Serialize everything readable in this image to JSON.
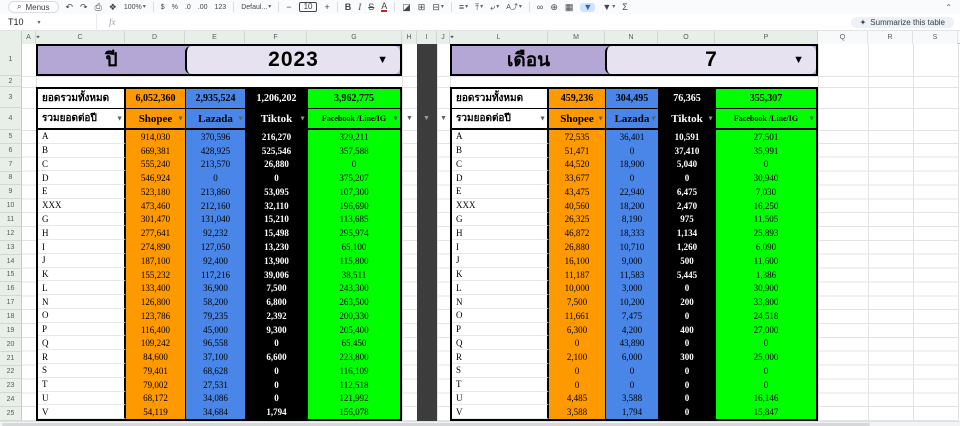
{
  "toolbar": {
    "menus_label": "Menus",
    "search_icon": "search-icon",
    "items": [
      {
        "n": "undo-icon",
        "g": "↶"
      },
      {
        "n": "redo-icon",
        "g": "↷"
      },
      {
        "n": "print-icon",
        "g": "⎙"
      },
      {
        "n": "paint-format-icon",
        "g": "❖"
      },
      {
        "n": "zoom-select",
        "g": "100%",
        "d": 1,
        "cls": "small"
      },
      {
        "n": "divider"
      },
      {
        "n": "format-currency-icon",
        "g": "$",
        "cls": "small"
      },
      {
        "n": "format-percent-icon",
        "g": "%",
        "cls": "small"
      },
      {
        "n": "decrease-decimal-icon",
        "g": ".0",
        "cls": "small"
      },
      {
        "n": "increase-decimal-icon",
        "g": ".00",
        "cls": "small"
      },
      {
        "n": "number-format-icon",
        "g": "123",
        "cls": "small"
      },
      {
        "n": "divider"
      },
      {
        "n": "font-select",
        "g": "Defaul...",
        "d": 1,
        "cls": "small"
      },
      {
        "n": "divider"
      },
      {
        "n": "decrease-font-size-icon",
        "g": "−"
      },
      {
        "n": "font-size-input",
        "g": "10",
        "cls": "box"
      },
      {
        "n": "increase-font-size-icon",
        "g": "+"
      },
      {
        "n": "divider"
      },
      {
        "n": "bold-icon",
        "g": "B",
        "cls": "bold"
      },
      {
        "n": "italic-icon",
        "g": "I",
        "cls": "ital"
      },
      {
        "n": "strikethrough-icon",
        "g": "S",
        "cls": "strike"
      },
      {
        "n": "text-color-icon",
        "g": "A",
        "cls": "redline"
      },
      {
        "n": "divider"
      },
      {
        "n": "fill-color-icon",
        "g": "◪"
      },
      {
        "n": "borders-icon",
        "g": "⊞"
      },
      {
        "n": "merge-cells-icon",
        "g": "⊟",
        "d": 1
      },
      {
        "n": "divider"
      },
      {
        "n": "horizontal-align-icon",
        "g": "≡",
        "d": 1
      },
      {
        "n": "vertical-align-icon",
        "g": "⤒",
        "d": 1
      },
      {
        "n": "text-wrap-icon",
        "g": "⤶",
        "d": 1
      },
      {
        "n": "text-rotation-icon",
        "g": "A⤴",
        "d": 1,
        "cls": "small"
      },
      {
        "n": "divider"
      },
      {
        "n": "insert-link-icon",
        "g": "∞"
      },
      {
        "n": "insert-comment-icon",
        "g": "⊕"
      },
      {
        "n": "insert-chart-icon",
        "g": "▦"
      },
      {
        "n": "create-filter-icon",
        "g": "▼",
        "active": 1
      },
      {
        "n": "filter-views-icon",
        "g": "▼",
        "d": 1
      },
      {
        "n": "functions-icon",
        "g": "Σ"
      }
    ],
    "collapse_icon_glyph": "⌃"
  },
  "formula_bar": {
    "cell_reference": "T10",
    "fx_label": "fx",
    "summarize_label": "Summarize this table",
    "summarize_icon_glyph": "✦"
  },
  "sheet": {
    "columns": [
      {
        "letter": "A",
        "hidden_after": true
      },
      {
        "letter": "C"
      },
      {
        "letter": "D"
      },
      {
        "letter": "E"
      },
      {
        "letter": "F"
      },
      {
        "letter": "G"
      },
      {
        "letter": "H"
      },
      {
        "letter": "I"
      },
      {
        "letter": "J",
        "hidden_after": true
      },
      {
        "letter": "L"
      },
      {
        "letter": "M"
      },
      {
        "letter": "N"
      },
      {
        "letter": "O"
      },
      {
        "letter": "P"
      },
      {
        "letter": "Q",
        "plain": true
      },
      {
        "letter": "R",
        "plain": true
      },
      {
        "letter": "S",
        "plain": true
      }
    ],
    "row_numbers": [
      1,
      2,
      3,
      4,
      5,
      6,
      7,
      8,
      9,
      10,
      11,
      12,
      13,
      14,
      15,
      16,
      17,
      18,
      19,
      20,
      21,
      22,
      23,
      24,
      25
    ]
  },
  "colors": {
    "shopee": "#ff9900",
    "lazada": "#4a86e8",
    "tiktok": "#000000",
    "facebook_line_ig": "#00ff00",
    "banner_purple": "#b4a7d6",
    "banner_chip": "#e6e2f0",
    "separator_dark": "#3c3c3c",
    "filter_active_blue": "#1967d2"
  },
  "tables": [
    {
      "banner_label": "ปี",
      "banner_value": "2023",
      "total_row_label": "ยอดรวมทั้งหมด",
      "filter_row_label": "รวมยอดต่อปี",
      "totals": [
        "6,052,360",
        "2,935,524",
        "1,206,202",
        "3,962,775"
      ],
      "channels": [
        "Shopee",
        "Lazada",
        "Tiktok",
        "Facebook /Line/IG"
      ],
      "rows": [
        {
          "label": "A",
          "values": [
            "914,030",
            "370,596",
            "216,270",
            "329,211"
          ]
        },
        {
          "label": "B",
          "values": [
            "669,381",
            "428,925",
            "525,546",
            "357,588"
          ]
        },
        {
          "label": "C",
          "values": [
            "555,240",
            "213,570",
            "26,880",
            "0"
          ]
        },
        {
          "label": "D",
          "values": [
            "546,924",
            "0",
            "0",
            "375,207"
          ]
        },
        {
          "label": "E",
          "values": [
            "523,180",
            "213,860",
            "53,095",
            "107,300"
          ]
        },
        {
          "label": "XXX",
          "values": [
            "473,460",
            "212,160",
            "32,110",
            "196,690"
          ]
        },
        {
          "label": "G",
          "values": [
            "301,470",
            "131,040",
            "15,210",
            "113,685"
          ]
        },
        {
          "label": "H",
          "values": [
            "277,641",
            "92,232",
            "15,498",
            "295,974"
          ]
        },
        {
          "label": "I",
          "values": [
            "274,890",
            "127,050",
            "13,230",
            "65,100"
          ]
        },
        {
          "label": "J",
          "values": [
            "187,100",
            "92,400",
            "13,900",
            "115,800"
          ]
        },
        {
          "label": "K",
          "values": [
            "155,232",
            "117,216",
            "39,006",
            "38,511"
          ]
        },
        {
          "label": "L",
          "values": [
            "133,400",
            "36,900",
            "7,500",
            "243,300"
          ]
        },
        {
          "label": "N",
          "values": [
            "126,800",
            "58,200",
            "6,800",
            "263,500"
          ]
        },
        {
          "label": "O",
          "values": [
            "123,786",
            "79,235",
            "2,392",
            "200,330"
          ]
        },
        {
          "label": "P",
          "values": [
            "116,400",
            "45,000",
            "9,300",
            "205,400"
          ]
        },
        {
          "label": "Q",
          "values": [
            "109,242",
            "96,558",
            "0",
            "65,450"
          ]
        },
        {
          "label": "R",
          "values": [
            "84,600",
            "37,100",
            "6,600",
            "223,800"
          ]
        },
        {
          "label": "S",
          "values": [
            "79,401",
            "68,628",
            "0",
            "116,109"
          ]
        },
        {
          "label": "T",
          "values": [
            "79,002",
            "27,531",
            "0",
            "112,518"
          ]
        },
        {
          "label": "U",
          "values": [
            "68,172",
            "34,086",
            "0",
            "121,992"
          ]
        },
        {
          "label": "V",
          "values": [
            "54,119",
            "34,684",
            "1,794",
            "156,078"
          ]
        }
      ]
    },
    {
      "banner_label": "เดือน",
      "banner_value": "7",
      "total_row_label": "ยอดรวมทั้งหมด",
      "filter_row_label": "รวมยอดต่อปี",
      "totals": [
        "459,236",
        "304,495",
        "76,365",
        "355,307"
      ],
      "channels": [
        "Shopee",
        "Lazada",
        "Tiktok",
        "Facebook /Line/IG"
      ],
      "rows": [
        {
          "label": "A",
          "values": [
            "72,535",
            "36,401",
            "10,591",
            "27,501"
          ]
        },
        {
          "label": "B",
          "values": [
            "51,471",
            "0",
            "37,410",
            "35,991"
          ]
        },
        {
          "label": "C",
          "values": [
            "44,520",
            "18,900",
            "5,040",
            "0"
          ]
        },
        {
          "label": "D",
          "values": [
            "33,677",
            "0",
            "0",
            "30,940"
          ]
        },
        {
          "label": "E",
          "values": [
            "43,475",
            "22,940",
            "6,475",
            "7,030"
          ]
        },
        {
          "label": "XXX",
          "values": [
            "40,560",
            "18,200",
            "2,470",
            "16,250"
          ]
        },
        {
          "label": "G",
          "values": [
            "26,325",
            "8,190",
            "975",
            "11,505"
          ]
        },
        {
          "label": "H",
          "values": [
            "46,872",
            "18,333",
            "1,134",
            "25,893"
          ]
        },
        {
          "label": "I",
          "values": [
            "26,880",
            "10,710",
            "1,260",
            "6,090"
          ]
        },
        {
          "label": "J",
          "values": [
            "16,100",
            "9,000",
            "500",
            "11,600"
          ]
        },
        {
          "label": "K",
          "values": [
            "11,187",
            "11,583",
            "5,445",
            "1,386"
          ]
        },
        {
          "label": "L",
          "values": [
            "10,000",
            "3,000",
            "0",
            "30,900"
          ]
        },
        {
          "label": "N",
          "values": [
            "7,500",
            "10,200",
            "200",
            "33,800"
          ]
        },
        {
          "label": "O",
          "values": [
            "11,661",
            "7,475",
            "0",
            "24,518"
          ]
        },
        {
          "label": "P",
          "values": [
            "6,300",
            "4,200",
            "400",
            "27,000"
          ]
        },
        {
          "label": "Q",
          "values": [
            "0",
            "43,890",
            "0",
            "0"
          ]
        },
        {
          "label": "R",
          "values": [
            "2,100",
            "6,000",
            "300",
            "25,000"
          ]
        },
        {
          "label": "S",
          "values": [
            "0",
            "0",
            "0",
            "0"
          ]
        },
        {
          "label": "T",
          "values": [
            "0",
            "0",
            "0",
            "0"
          ]
        },
        {
          "label": "U",
          "values": [
            "4,485",
            "3,588",
            "0",
            "16,146"
          ]
        },
        {
          "label": "V",
          "values": [
            "3,588",
            "1,794",
            "0",
            "15,847"
          ]
        }
      ]
    }
  ]
}
